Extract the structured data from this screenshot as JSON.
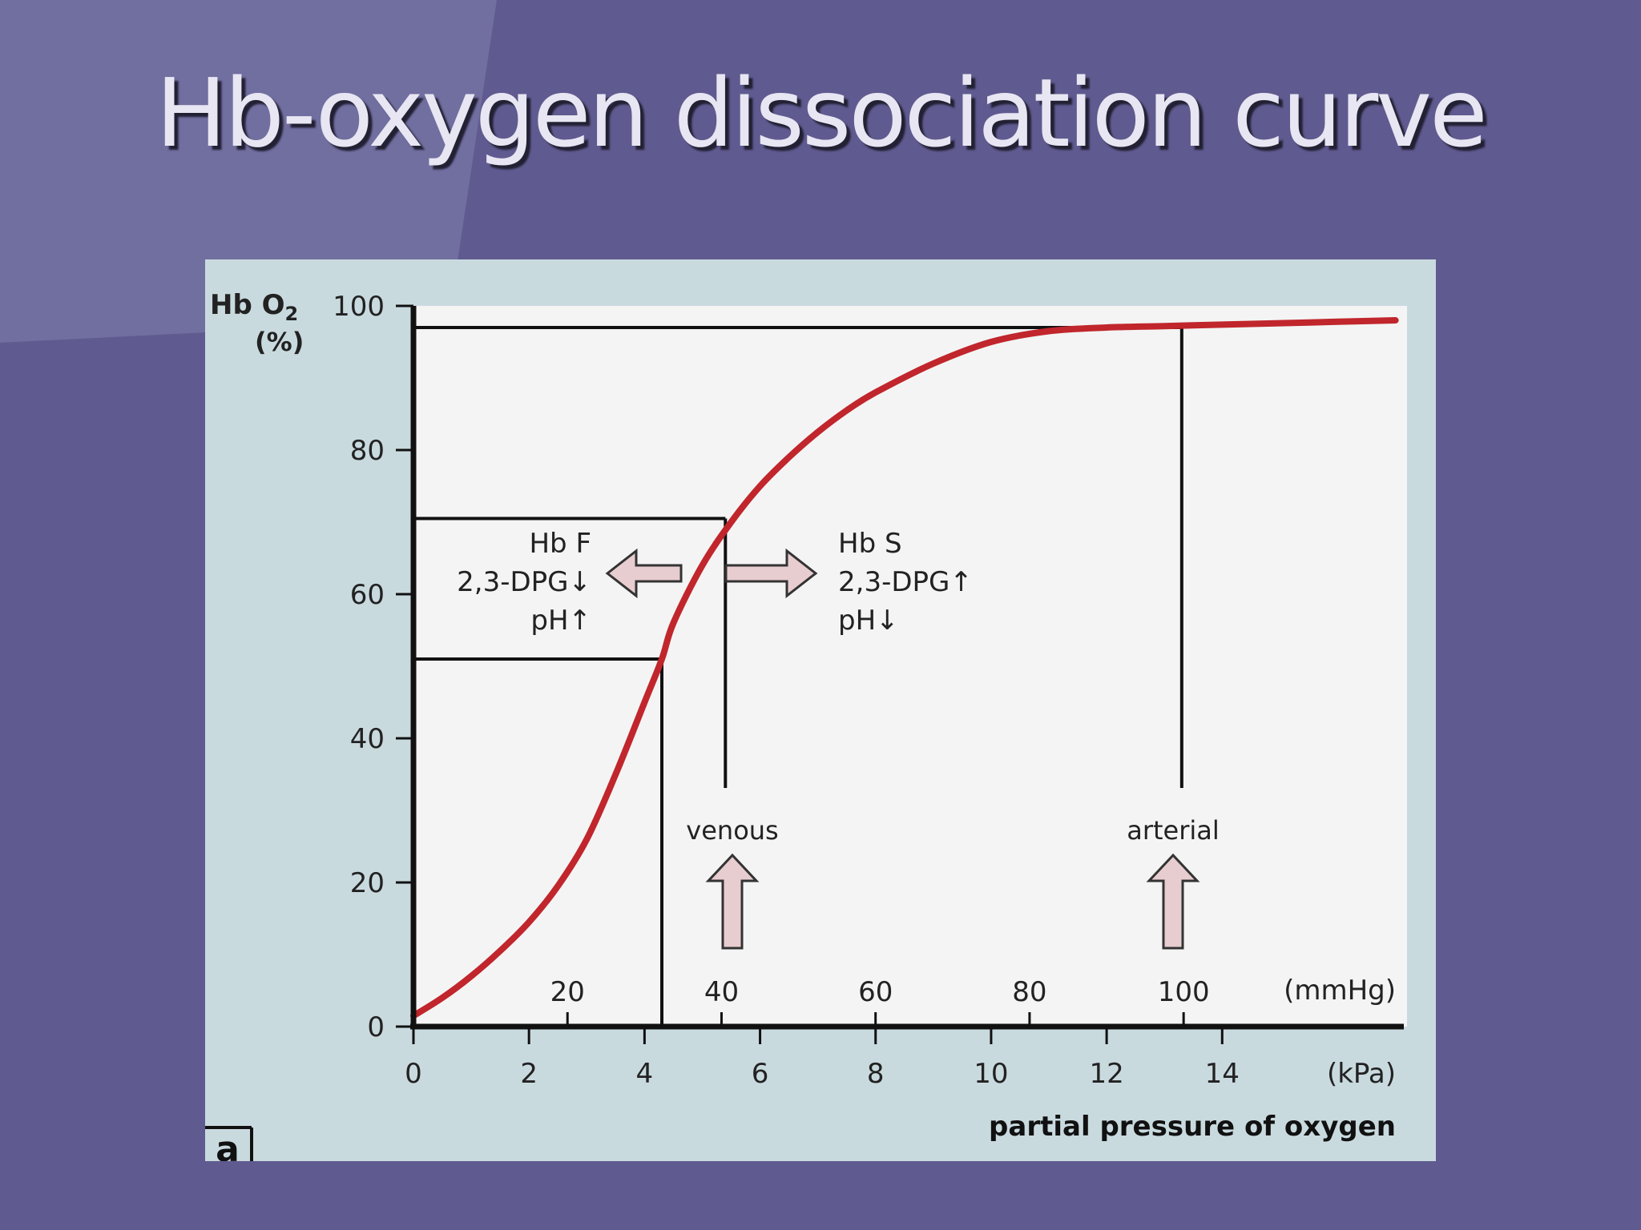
{
  "slide": {
    "title": "Hb-oxygen dissociation curve"
  },
  "colors": {
    "background": "#5f5a8f",
    "panel": "#c9dadf",
    "plot": "#f4f4f4",
    "curve": "#c0262c",
    "arrow_fill": "#e8cdd0"
  },
  "chart_data": {
    "type": "line",
    "title": "",
    "ylabel_main": "Hb O",
    "ylabel_sub": "2",
    "ylabel_unit": "(%)",
    "xlabel": "partial pressure of oxygen",
    "x_unit": "(kPa)",
    "x2_unit": "(mmHg)",
    "xlim": [
      0,
      17.2
    ],
    "ylim": [
      0,
      100
    ],
    "yticks": [
      0,
      20,
      40,
      60,
      80,
      100
    ],
    "yticks_labels": [
      "0",
      "20",
      "40",
      "60",
      "80",
      "100"
    ],
    "xticks": [
      0,
      2,
      4,
      6,
      8,
      10,
      12,
      14
    ],
    "xticks_labels": [
      "0",
      "2",
      "4",
      "6",
      "8",
      "10",
      "12",
      "14"
    ],
    "x2ticks": [
      20,
      40,
      60,
      80,
      100
    ],
    "x2ticks_labels": [
      "20",
      "40",
      "60",
      "80",
      "100"
    ],
    "series": [
      {
        "x": [
          0,
          0.5,
          1,
          1.5,
          2,
          2.5,
          3,
          3.5,
          4,
          4.3,
          4.5,
          5,
          5.5,
          6,
          6.5,
          7,
          7.5,
          8,
          9,
          10,
          11,
          12,
          13,
          14,
          15,
          16,
          17
        ],
        "y": [
          1.5,
          4,
          7,
          10.5,
          14.5,
          19.5,
          26,
          35,
          45,
          51,
          56,
          64,
          70,
          75,
          79,
          82.5,
          85.5,
          88,
          92,
          95,
          96.5,
          97,
          97.2,
          97.4,
          97.6,
          97.8,
          98
        ]
      }
    ],
    "reference_lines": [
      {
        "x": 4.3,
        "y": 51
      },
      {
        "x": 5.4,
        "y": 70.5
      },
      {
        "x": 13.3,
        "y": 97
      }
    ],
    "annotations": {
      "left_shift": [
        "Hb F",
        "2,3-DPG↓",
        "pH↑"
      ],
      "right_shift": [
        "Hb S",
        "2,3-DPG↑",
        "pH↓"
      ],
      "venous": "venous",
      "arterial": "arterial",
      "panel_letter": "a"
    }
  }
}
